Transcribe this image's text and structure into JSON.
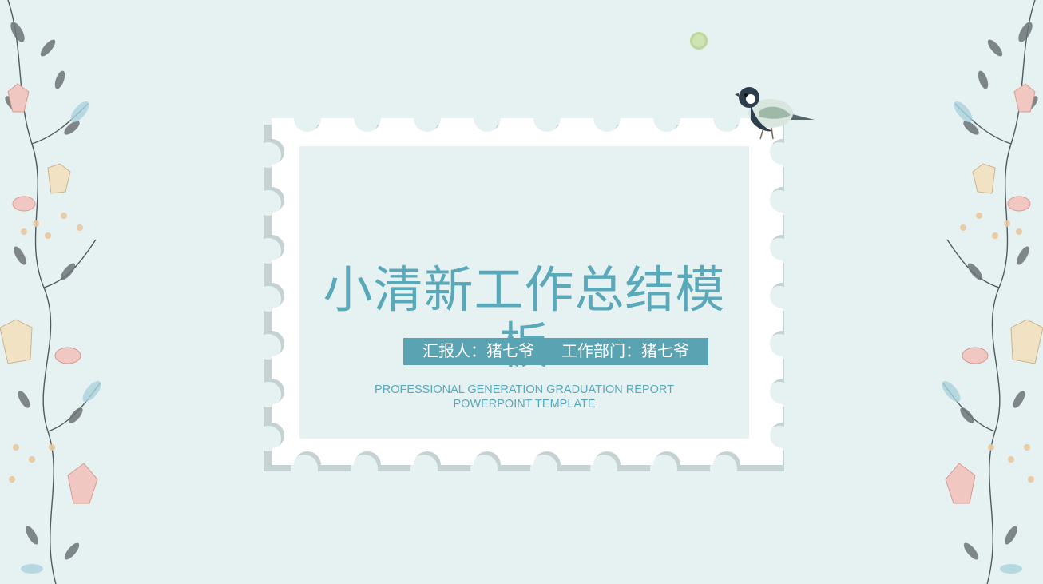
{
  "slide": {
    "title": "小清新工作总结模板",
    "reporter_label": "汇报人：猪七爷",
    "department_label": "工作部门：猪七爷",
    "subtitle_line1": "PROFESSIONAL GENERATION GRADUATION REPORT",
    "subtitle_line2": "POWERPOINT TEMPLATE"
  },
  "colors": {
    "background": "#e6f1f1",
    "accent": "#5aa9ba",
    "label_bg": "#5aa3b2",
    "stamp": "#ffffff"
  },
  "decorations": {
    "left": "floral-border-illustration",
    "right": "floral-border-illustration",
    "bird": "bird-illustration",
    "dot": "green-dot"
  }
}
